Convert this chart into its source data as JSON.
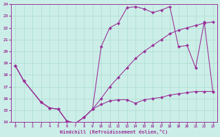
{
  "background_color": "#cceee8",
  "grid_color": "#aaddcc",
  "line_color": "#993399",
  "xlabel": "Windchill (Refroidissement éolien,°C)",
  "xlim": [
    -0.5,
    23.5
  ],
  "ylim": [
    14,
    24
  ],
  "yticks": [
    14,
    15,
    16,
    17,
    18,
    19,
    20,
    21,
    22,
    23,
    24
  ],
  "xticks": [
    0,
    1,
    2,
    3,
    4,
    5,
    6,
    7,
    8,
    9,
    10,
    11,
    12,
    13,
    14,
    15,
    16,
    17,
    18,
    19,
    20,
    21,
    22,
    23
  ],
  "curve_bottom_x": [
    0,
    1,
    3,
    4,
    5,
    6,
    7,
    8,
    9,
    10,
    11,
    12,
    13,
    14,
    15,
    16,
    17,
    18,
    19,
    20,
    21,
    22,
    23
  ],
  "curve_bottom_y": [
    18.8,
    17.5,
    15.7,
    15.2,
    15.1,
    14.1,
    13.9,
    14.4,
    15.1,
    15.5,
    15.8,
    15.9,
    15.9,
    15.6,
    15.9,
    16.0,
    16.1,
    16.3,
    16.4,
    16.5,
    16.6,
    16.6,
    16.6
  ],
  "curve_mid_x": [
    0,
    1,
    3,
    4,
    5,
    6,
    7,
    8,
    9,
    10,
    11,
    12,
    13,
    14,
    15,
    16,
    17,
    18,
    19,
    20,
    21,
    22,
    23
  ],
  "curve_mid_y": [
    18.8,
    17.5,
    15.7,
    15.2,
    15.1,
    14.1,
    13.9,
    14.4,
    15.1,
    16.0,
    17.0,
    17.8,
    18.6,
    19.4,
    20.0,
    20.5,
    21.0,
    21.5,
    21.8,
    22.0,
    22.2,
    22.4,
    22.5
  ],
  "curve_top_x": [
    0,
    1,
    3,
    4,
    5,
    6,
    7,
    8,
    9,
    10,
    11,
    12,
    13,
    14,
    15,
    16,
    17,
    18,
    19,
    20,
    21,
    22,
    23
  ],
  "curve_top_y": [
    18.8,
    17.5,
    15.7,
    15.2,
    15.1,
    14.1,
    13.9,
    14.4,
    15.1,
    20.4,
    22.0,
    22.4,
    23.7,
    23.8,
    23.6,
    23.3,
    23.5,
    23.8,
    20.4,
    20.5,
    18.6,
    22.5,
    16.6
  ]
}
